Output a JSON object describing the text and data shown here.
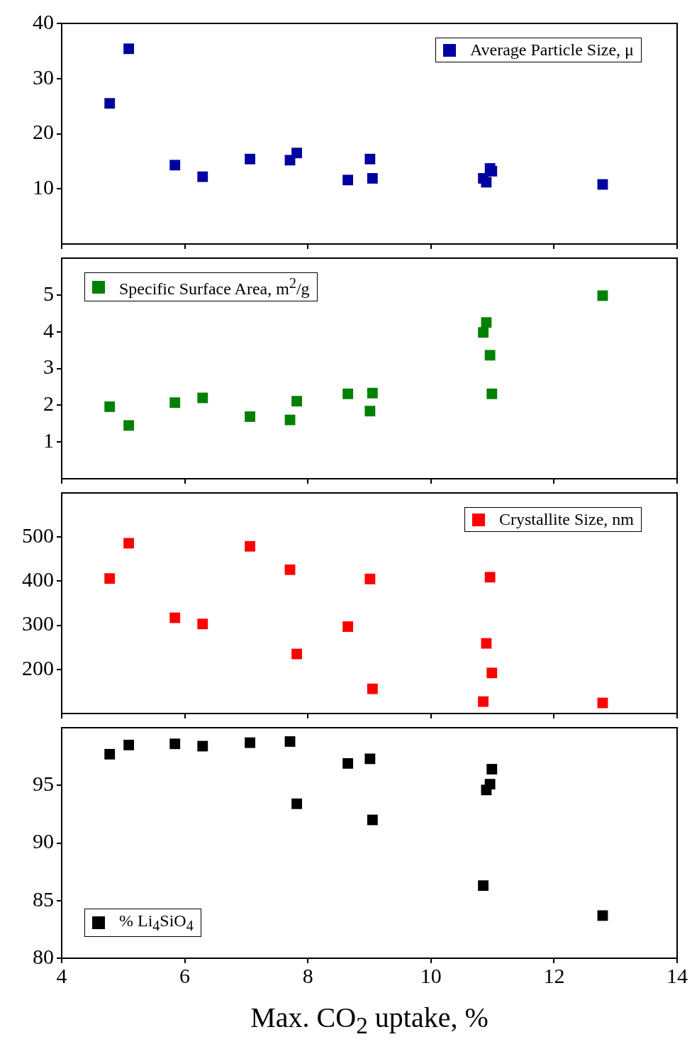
{
  "chart_data": [
    {
      "type": "scatter",
      "x": [
        4.78,
        5.09,
        5.84,
        6.29,
        7.06,
        7.71,
        7.82,
        8.65,
        9.01,
        9.05,
        10.85,
        10.9,
        10.96,
        10.99,
        12.79
      ],
      "series": [
        {
          "name": "Average Particle Size, μ",
          "color": "#0000a0",
          "values": [
            25.5,
            35.4,
            14.3,
            12.2,
            15.4,
            15.2,
            16.5,
            11.6,
            15.4,
            11.9,
            11.9,
            11.2,
            13.7,
            13.2,
            10.8
          ]
        }
      ],
      "xlim": [
        4,
        14
      ],
      "xticks": [
        4,
        6,
        8,
        10,
        12,
        14
      ],
      "ylim": [
        0,
        40
      ],
      "yticks": [
        10,
        20,
        30,
        40
      ],
      "marker": "square",
      "legend": "top right",
      "tick_labels": "y"
    },
    {
      "type": "scatter",
      "x": [
        4.78,
        5.09,
        5.84,
        6.29,
        7.06,
        7.71,
        7.82,
        8.65,
        9.01,
        9.05,
        10.85,
        10.9,
        10.96,
        10.99,
        12.79
      ],
      "series": [
        {
          "name": "Specific Surface Area, m$^{2}$/g",
          "color": "#008000",
          "values": [
            1.96,
            1.45,
            2.07,
            2.2,
            1.69,
            1.6,
            2.11,
            2.31,
            1.84,
            2.33,
            3.98,
            4.25,
            3.36,
            2.31,
            4.98
          ]
        }
      ],
      "xlim": [
        4,
        14
      ],
      "xticks": [
        4,
        6,
        8,
        10,
        12,
        14
      ],
      "ylim": [
        0,
        6
      ],
      "yticks": [
        1,
        2,
        3,
        4,
        5
      ],
      "marker": "square",
      "legend": "top left",
      "tick_labels": "y"
    },
    {
      "type": "scatter",
      "x": [
        4.78,
        5.09,
        5.84,
        6.29,
        7.06,
        7.71,
        7.82,
        8.65,
        9.01,
        9.05,
        10.85,
        10.9,
        10.96,
        10.99,
        12.79
      ],
      "series": [
        {
          "name": "Crystallite Size, nm",
          "color": "#ff0000",
          "values": [
            406,
            486,
            317,
            303,
            479,
            426,
            235,
            297,
            405,
            156,
            127,
            259,
            409,
            192,
            124
          ]
        }
      ],
      "xlim": [
        4,
        14
      ],
      "xticks": [
        4,
        6,
        8,
        10,
        12,
        14
      ],
      "ylim": [
        100,
        600
      ],
      "yticks": [
        200,
        300,
        400,
        500
      ],
      "marker": "square",
      "legend": "top right",
      "tick_labels": "y"
    },
    {
      "type": "scatter",
      "x": [
        4.78,
        5.09,
        5.84,
        6.29,
        7.06,
        7.71,
        7.82,
        8.65,
        9.01,
        9.05,
        10.85,
        10.9,
        10.96,
        10.99,
        12.79
      ],
      "series": [
        {
          "name": "% Li$_{4}$SiO$_{4}$",
          "color": "#000000",
          "values": [
            97.7,
            98.5,
            98.6,
            98.4,
            98.7,
            98.8,
            93.4,
            96.9,
            97.3,
            92.0,
            86.3,
            94.6,
            95.1,
            96.4,
            83.7
          ]
        }
      ],
      "xlabel": "Max. CO$_{2}$ uptake, %",
      "xlim": [
        4,
        14
      ],
      "xticks": [
        4,
        6,
        8,
        10,
        12,
        14
      ],
      "ylim": [
        80,
        100
      ],
      "yticks": [
        80,
        85,
        90,
        95
      ],
      "marker": "square",
      "legend": "bottom left"
    }
  ]
}
